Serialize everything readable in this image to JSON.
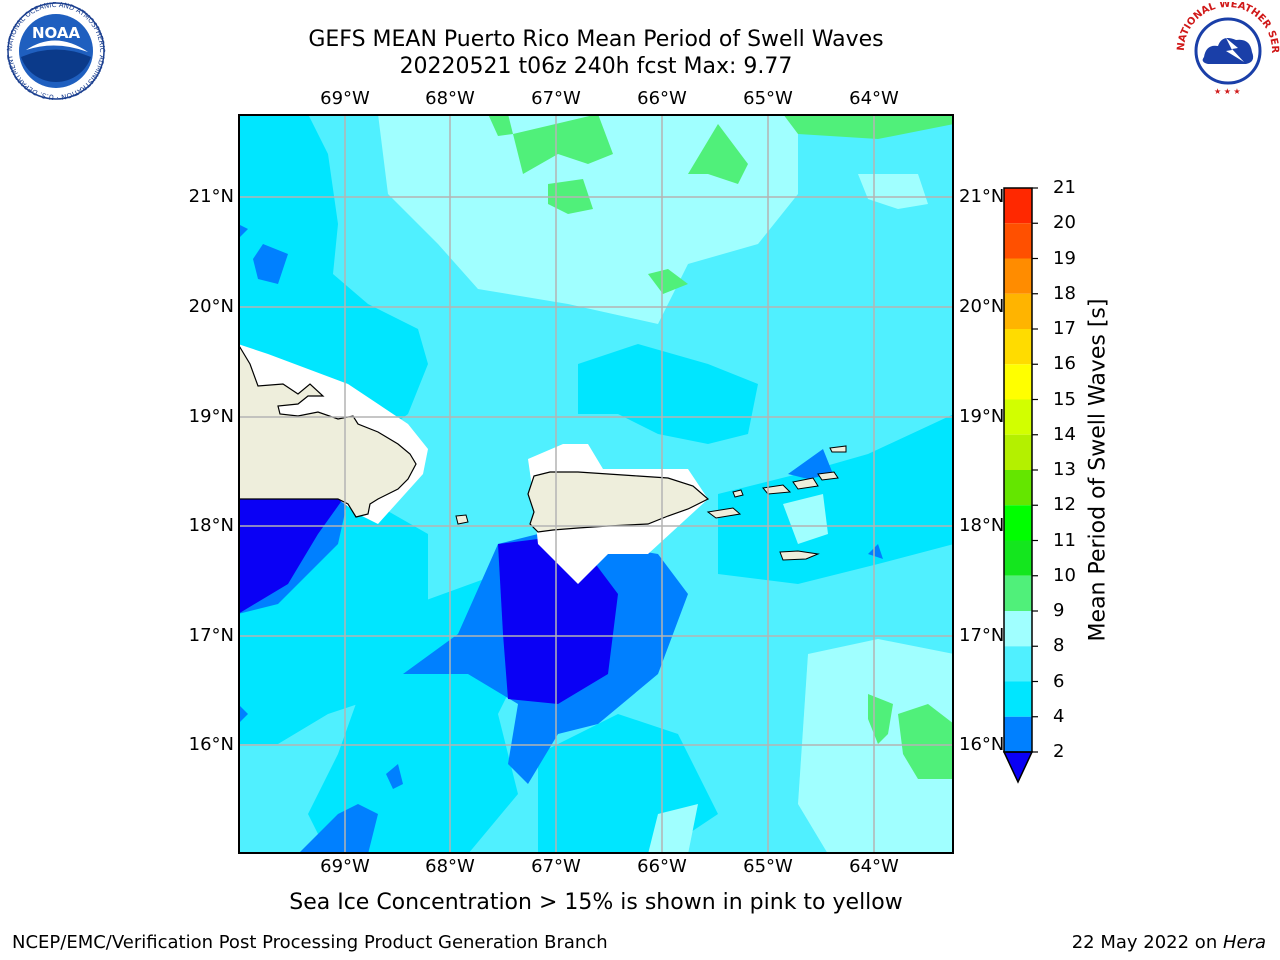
{
  "header": {
    "title_line1": "GEFS MEAN Puerto Rico Mean Period of Swell Waves",
    "title_line2": "20220521 t06z 240h fcst   Max: 9.77"
  },
  "logos": {
    "noaa_text": "NOAA",
    "noaa_ring_text": "NATIONAL OCEANIC AND ATMOSPHERIC ADMINISTRATION · U.S. DEPARTMENT OF COMMERCE",
    "nws_ring_text": "NATIONAL WEATHER SERVICE"
  },
  "map": {
    "lon_labels": [
      "69°W",
      "68°W",
      "67°W",
      "66°W",
      "65°W",
      "64°W"
    ],
    "lat_labels": [
      "21°N",
      "20°N",
      "19°N",
      "18°N",
      "17°N",
      "16°N"
    ],
    "land_color": "#eeeedc",
    "grid_color": "#b4b4b4"
  },
  "colorbar": {
    "label": "Mean Period of Swell Waves [s]",
    "ticks": [
      "2",
      "4",
      "6",
      "8",
      "9",
      "10",
      "11",
      "12",
      "13",
      "14",
      "15",
      "16",
      "17",
      "18",
      "19",
      "20",
      "21"
    ],
    "colors": [
      "#0a00f5",
      "#0080ff",
      "#00e6ff",
      "#50f0ff",
      "#a0ffff",
      "#50f07a",
      "#14e61e",
      "#00ff00",
      "#64e600",
      "#b4f000",
      "#d2ff00",
      "#ffff00",
      "#ffdc00",
      "#ffb400",
      "#ff8c00",
      "#ff5000",
      "#ff2800",
      "#ff0000"
    ]
  },
  "footnote": "Sea Ice Concentration > 15% is shown in pink to yellow",
  "footer": {
    "left": "NCEP/EMC/Verification Post Processing Product Generation Branch",
    "date": "22 May 2022 on ",
    "machine": "Hera"
  }
}
